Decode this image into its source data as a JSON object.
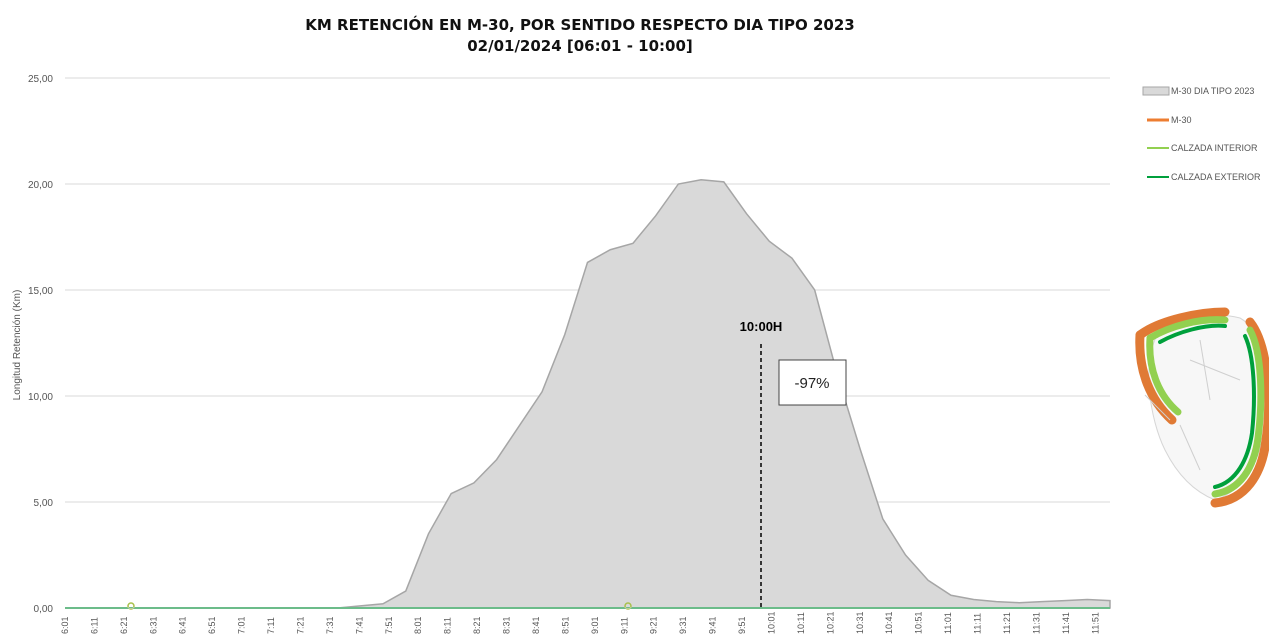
{
  "chart_data": {
    "type": "area",
    "title": "KM RETENCIÓN EN M-30, POR SENTIDO RESPECTO DIA TIPO 2023",
    "subtitle": "02/01/2024    [06:01 - 10:00]",
    "ylabel": "Longitud Retención (Km)",
    "ylim": [
      0,
      25
    ],
    "yticks": [
      "0,00",
      "5,00",
      "10,00",
      "15,00",
      "20,00",
      "25,00"
    ],
    "grid": true,
    "legend_position": "right",
    "x_ticks": [
      "6:01",
      "6:11",
      "6:21",
      "6:31",
      "6:41",
      "6:51",
      "7:01",
      "7:11",
      "7:21",
      "7:31",
      "7:41",
      "7:51",
      "8:01",
      "8:11",
      "8:21",
      "8:31",
      "8:41",
      "8:51",
      "9:01",
      "9:11",
      "9:21",
      "9:31",
      "9:41",
      "9:51",
      "10:01",
      "10:11",
      "10:21",
      "10:31",
      "10:41",
      "10:51",
      "11:01",
      "11:11",
      "11:21",
      "11:31",
      "11:41",
      "11:51"
    ],
    "series": [
      {
        "name": "M-30 DIA TIPO 2023",
        "kind": "area",
        "color": "#d9d9d9",
        "line_color": "#a6a6a6",
        "values": [
          0,
          0,
          0,
          0,
          0,
          0,
          0,
          0,
          0,
          0,
          0,
          0,
          0,
          0.1,
          0.2,
          0.8,
          3.5,
          5.4,
          5.9,
          7.0,
          8.6,
          10.2,
          12.9,
          16.3,
          16.9,
          17.2,
          18.5,
          20.0,
          20.2,
          20.1,
          18.6,
          17.3,
          16.5,
          15.0,
          11.0,
          7.5,
          4.2,
          2.5,
          1.3,
          0.6,
          0.4,
          0.3,
          0.25,
          0.3,
          0.35,
          0.4,
          0.35
        ]
      },
      {
        "name": "M-30",
        "kind": "line",
        "color": "#ed7d31",
        "values": [
          0,
          0,
          0,
          0,
          0,
          0,
          0,
          0,
          0,
          0,
          0,
          0,
          0,
          0,
          0,
          0,
          0,
          0,
          0,
          0,
          0,
          0,
          0,
          0,
          0,
          0,
          0,
          0,
          0,
          0,
          0,
          0,
          0,
          0,
          0,
          0,
          0,
          0,
          0,
          0,
          0,
          0,
          0,
          0,
          0,
          0,
          0
        ]
      },
      {
        "name": "CALZADA INTERIOR",
        "kind": "line",
        "color": "#92d050",
        "values": [
          0,
          0,
          0,
          0,
          0,
          0,
          0,
          0,
          0,
          0,
          0,
          0,
          0,
          0,
          0,
          0,
          0,
          0,
          0,
          0,
          0,
          0,
          0,
          0,
          0,
          0,
          0,
          0,
          0,
          0,
          0,
          0,
          0,
          0,
          0,
          0,
          0,
          0,
          0,
          0,
          0,
          0,
          0,
          0,
          0,
          0,
          0
        ]
      },
      {
        "name": "CALZADA EXTERIOR",
        "kind": "line",
        "color": "#00a03c",
        "values": [
          0,
          0,
          0,
          0,
          0,
          0,
          0,
          0,
          0,
          0,
          0,
          0,
          0,
          0,
          0,
          0,
          0,
          0,
          0,
          0,
          0,
          0,
          0,
          0,
          0,
          0,
          0,
          0,
          0,
          0,
          0,
          0,
          0,
          0,
          0,
          0,
          0,
          0,
          0,
          0,
          0,
          0,
          0,
          0,
          0,
          0,
          0
        ]
      }
    ],
    "annotations": [
      {
        "label": "10:00H",
        "at": "10:00"
      },
      {
        "label": "-97%",
        "at": "10:00"
      }
    ]
  }
}
